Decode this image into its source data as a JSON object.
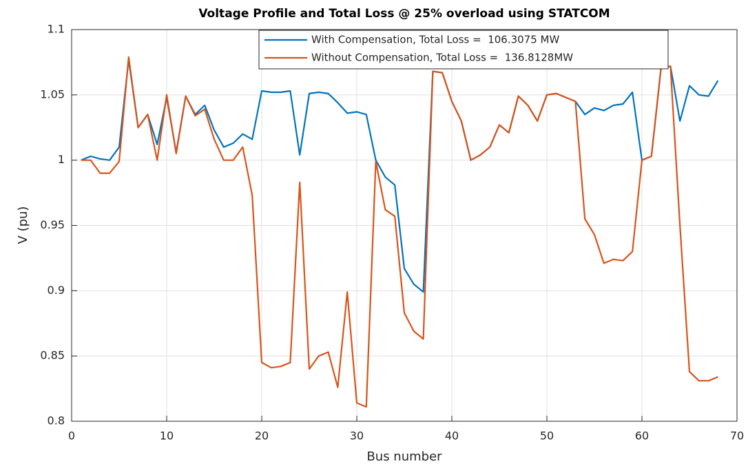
{
  "chart_data": {
    "type": "line",
    "title": "Voltage Profile and Total Loss @ 25% overload using STATCOM",
    "x_label": "Bus number",
    "y_label": "V (pu)",
    "x": [
      1,
      2,
      3,
      4,
      5,
      6,
      7,
      8,
      9,
      10,
      11,
      12,
      13,
      14,
      15,
      16,
      17,
      18,
      19,
      20,
      21,
      22,
      23,
      24,
      25,
      26,
      27,
      28,
      29,
      30,
      31,
      32,
      33,
      34,
      35,
      36,
      37,
      38,
      39,
      40,
      41,
      42,
      43,
      44,
      45,
      46,
      47,
      48,
      49,
      50,
      51,
      52,
      53,
      54,
      55,
      56,
      57,
      58,
      59,
      60,
      61,
      62,
      63,
      64,
      65,
      66,
      67,
      68
    ],
    "series": [
      {
        "name": "With Compensation, Total Loss =  106.3075 MW",
        "color": "#0072bd",
        "values": [
          1.0,
          1.003,
          1.001,
          1.0,
          1.01,
          1.077,
          1.025,
          1.035,
          1.012,
          1.048,
          1.006,
          1.049,
          1.035,
          1.042,
          1.023,
          1.01,
          1.013,
          1.02,
          1.016,
          1.053,
          1.052,
          1.052,
          1.053,
          1.004,
          1.051,
          1.052,
          1.051,
          1.044,
          1.036,
          1.037,
          1.035,
          1.0,
          0.987,
          0.981,
          0.917,
          0.905,
          0.899,
          1.068,
          1.067,
          1.045,
          1.03,
          1.0,
          1.004,
          1.01,
          1.027,
          1.021,
          1.049,
          1.042,
          1.03,
          1.05,
          1.051,
          1.048,
          1.045,
          1.035,
          1.04,
          1.038,
          1.042,
          1.043,
          1.052,
          1.0,
          1.003,
          1.07,
          1.072,
          1.03,
          1.057,
          1.05,
          1.049,
          1.061
        ]
      },
      {
        "name": "Without Compensation, Total Loss =  136.8128MW",
        "color": "#d95319",
        "values": [
          1.0,
          1.0,
          0.99,
          0.99,
          0.999,
          1.079,
          1.025,
          1.035,
          1.0,
          1.05,
          1.005,
          1.049,
          1.034,
          1.039,
          1.016,
          1.0,
          1.0,
          1.01,
          0.973,
          0.845,
          0.841,
          0.842,
          0.845,
          0.983,
          0.84,
          0.85,
          0.853,
          0.826,
          0.899,
          0.814,
          0.811,
          0.999,
          0.962,
          0.957,
          0.883,
          0.869,
          0.863,
          1.068,
          1.067,
          1.045,
          1.03,
          1.0,
          1.004,
          1.01,
          1.027,
          1.021,
          1.049,
          1.042,
          1.03,
          1.05,
          1.051,
          1.048,
          1.045,
          0.955,
          0.943,
          0.921,
          0.924,
          0.923,
          0.93,
          1.0,
          1.003,
          1.07,
          1.072,
          0.95,
          0.838,
          0.831,
          0.831,
          0.834
        ]
      }
    ],
    "xlim": [
      0,
      70
    ],
    "xticks": [
      0,
      10,
      20,
      30,
      40,
      50,
      60,
      70
    ],
    "ylim": [
      0.8,
      1.1
    ],
    "yticks": [
      0.8,
      0.85,
      0.9,
      0.95,
      1,
      1.05,
      1.1
    ],
    "grid": true,
    "legend": "top"
  }
}
